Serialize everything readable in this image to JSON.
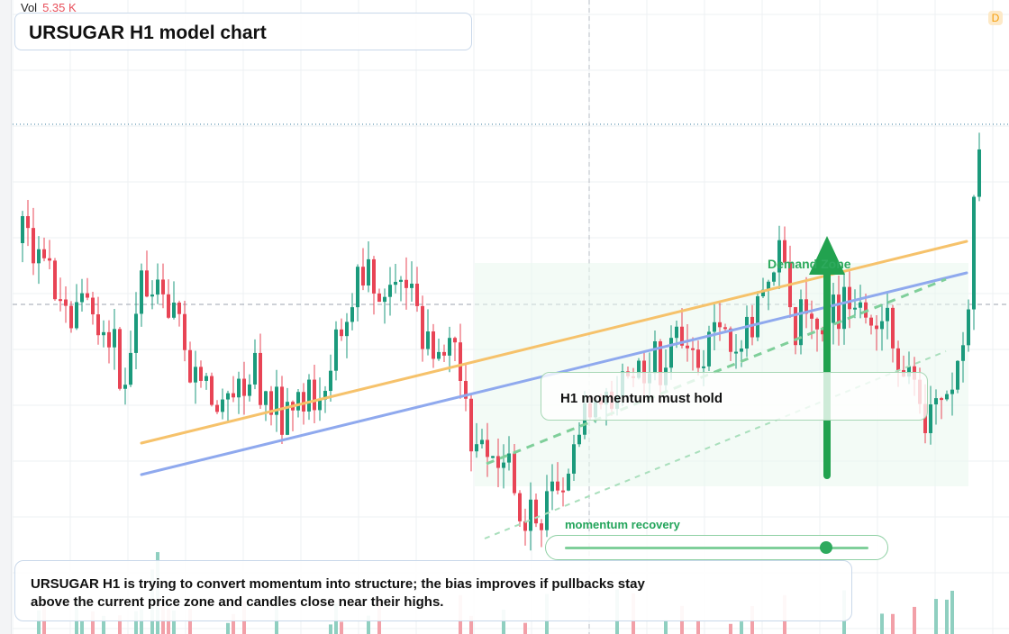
{
  "header": {
    "vol_label": "Vol",
    "vol_value": "5.35 K",
    "badge": "D"
  },
  "chart_data": {
    "type": "candlestick",
    "title": "URSUGAR H1 model chart",
    "up_color": "#1b9a7c",
    "down_color": "#e84455",
    "volume_up_color": "#8fcfc0",
    "volume_down_color": "#f2a0a8",
    "trendlines": [
      {
        "name": "",
        "color": "#f6c26b"
      },
      {
        "name": "",
        "color": "#8fa9ee"
      }
    ],
    "annotations": {
      "zone_label": "Demand Zone",
      "momentum_note": "H1 momentum must hold",
      "slider_label": "momentum recovery",
      "slider_value": 0.86,
      "arrow": "up"
    }
  },
  "caption": "URSUGAR H1 is trying to convert momentum into structure; the bias improves if pullbacks stay above the current price zone and candles close near their highs."
}
